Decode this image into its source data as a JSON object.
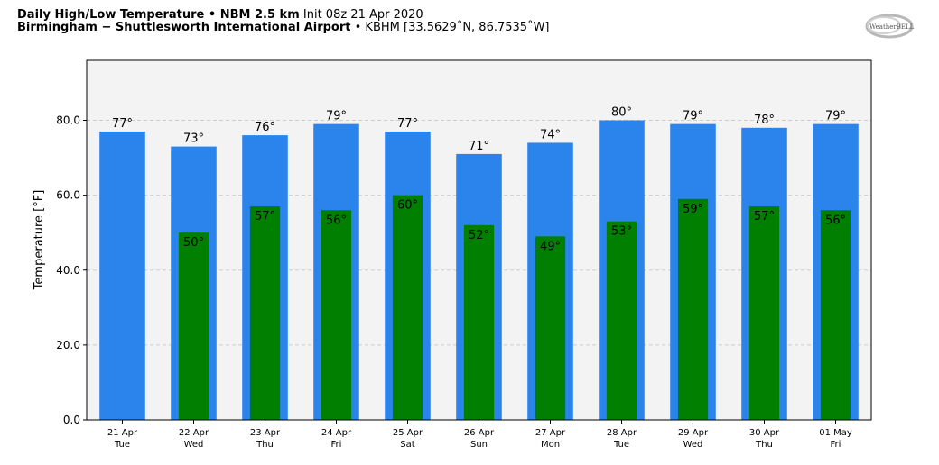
{
  "header": {
    "title_bold": "Daily High/Low Temperature • NBM 2.5 km",
    "title_init": "Init 08z 21 Apr 2020",
    "station_bold": "Birmingham − Shuttlesworth International Airport",
    "station_rest": "• KBHM [33.5629˚N, 86.7535˚W]"
  },
  "logo": {
    "icon": "weatherbell-logo",
    "text": "WeatherBELL"
  },
  "colors": {
    "high": "#2b83ec",
    "low": "#007f00",
    "plot_bg": "#f3f3f3",
    "grid": "#cccccc"
  },
  "chart_data": {
    "type": "bar",
    "ylabel": "Temperature [°F]",
    "ylim": [
      0,
      96
    ],
    "yticks": [
      0,
      20,
      40,
      60,
      80
    ],
    "ytick_labels": [
      "0.0",
      "20.0",
      "40.0",
      "60.0",
      "80.0"
    ],
    "grid": true,
    "categories": [
      {
        "date": "21 Apr",
        "day": "Tue"
      },
      {
        "date": "22 Apr",
        "day": "Wed"
      },
      {
        "date": "23 Apr",
        "day": "Thu"
      },
      {
        "date": "24 Apr",
        "day": "Fri"
      },
      {
        "date": "25 Apr",
        "day": "Sat"
      },
      {
        "date": "26 Apr",
        "day": "Sun"
      },
      {
        "date": "27 Apr",
        "day": "Mon"
      },
      {
        "date": "28 Apr",
        "day": "Tue"
      },
      {
        "date": "29 Apr",
        "day": "Wed"
      },
      {
        "date": "30 Apr",
        "day": "Thu"
      },
      {
        "date": "01 May",
        "day": "Fri"
      }
    ],
    "series": [
      {
        "values": [
          77,
          73,
          76,
          79,
          77,
          71,
          74,
          80,
          79,
          78,
          79
        ]
      },
      {
        "values": [
          null,
          50,
          57,
          56,
          60,
          52,
          49,
          53,
          59,
          57,
          56
        ]
      }
    ],
    "value_suffix": "°"
  }
}
